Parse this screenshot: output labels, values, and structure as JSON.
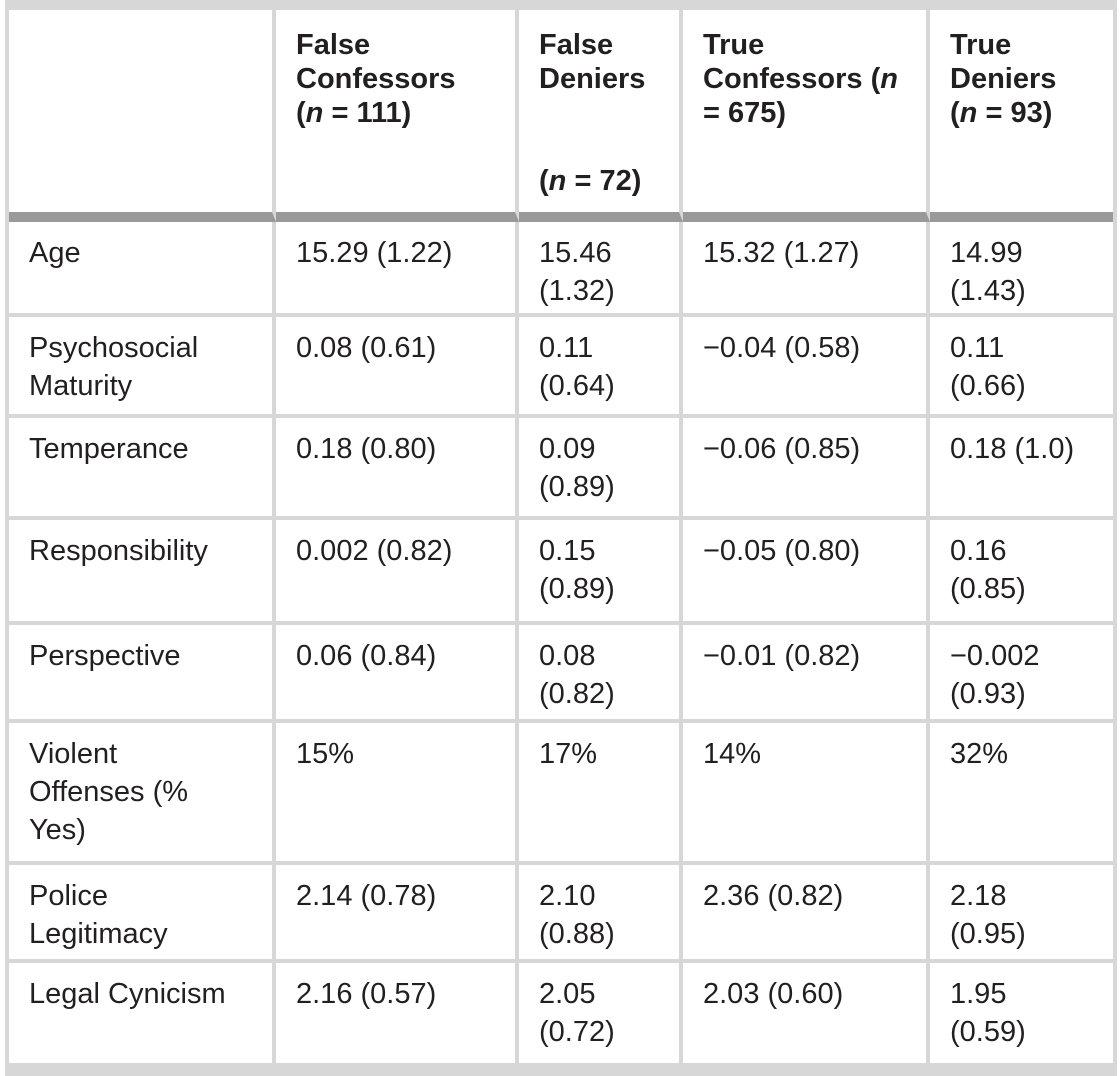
{
  "colors": {
    "text": "#231f20",
    "grid_border": "#d7d7d7",
    "header_band": "#999999",
    "cell_background": "#ffffff"
  },
  "table": {
    "description": "Descriptive statistics table: mean (SD) by confession/denial group",
    "columns": [
      {
        "key": "variable",
        "header_text": "",
        "header_lines": []
      },
      {
        "key": "false_confessors",
        "header_text": "False Confessors (n = 111)",
        "header_lines": [
          [
            {
              "t": "False"
            }
          ],
          [
            {
              "t": "Confessors"
            }
          ],
          [
            {
              "t": "("
            },
            {
              "t": "n",
              "i": true
            },
            {
              "t": " = 111)"
            }
          ]
        ]
      },
      {
        "key": "false_deniers",
        "header_text": "False Deniers (n = 72)",
        "header_lines": [
          [
            {
              "t": "False"
            }
          ],
          [
            {
              "t": "Deniers"
            }
          ],
          [],
          [],
          [
            {
              "t": "("
            },
            {
              "t": "n",
              "i": true
            },
            {
              "t": " = 72)"
            }
          ]
        ]
      },
      {
        "key": "true_confessors",
        "header_text": "True Confessors (n = 675)",
        "header_lines": [
          [
            {
              "t": "True"
            }
          ],
          [
            {
              "t": "Confessors ("
            },
            {
              "t": "n",
              "i": true
            }
          ],
          [
            {
              "t": "= 675)"
            }
          ]
        ]
      },
      {
        "key": "true_deniers",
        "header_text": "True Deniers (n = 93)",
        "header_lines": [
          [
            {
              "t": "True"
            }
          ],
          [
            {
              "t": "Deniers"
            }
          ],
          [
            {
              "t": "("
            },
            {
              "t": "n",
              "i": true
            },
            {
              "t": " = 93)"
            }
          ]
        ]
      }
    ],
    "rows": [
      {
        "label": "Age",
        "values": [
          "15.29 (1.22)",
          "15.46\n(1.32)",
          "15.32 (1.27)",
          "14.99\n(1.43)"
        ]
      },
      {
        "label": "Psychosocial\nMaturity",
        "values": [
          "0.08 (0.61)",
          "0.11\n(0.64)",
          "−0.04 (0.58)",
          "0.11\n(0.66)"
        ]
      },
      {
        "label": "Temperance",
        "values": [
          "0.18 (0.80)",
          "0.09\n(0.89)",
          "−0.06 (0.85)",
          "0.18 (1.0)"
        ]
      },
      {
        "label": "Responsibility",
        "values": [
          "0.002 (0.82)",
          "0.15\n(0.89)",
          "−0.05 (0.80)",
          "0.16\n(0.85)"
        ]
      },
      {
        "label": "Perspective",
        "values": [
          "0.06 (0.84)",
          "0.08\n(0.82)",
          "−0.01 (0.82)",
          "−0.002\n(0.93)"
        ]
      },
      {
        "label": "Violent\nOffenses (%\nYes)",
        "values": [
          "15%",
          "17%",
          "14%",
          "32%"
        ]
      },
      {
        "label": "Police\nLegitimacy",
        "values": [
          "2.14 (0.78)",
          "2.10\n(0.88)",
          "2.36 (0.82)",
          "2.18\n(0.95)"
        ]
      },
      {
        "label": "Legal Cynicism",
        "values": [
          "2.16 (0.57)",
          "2.05\n(0.72)",
          "2.03 (0.60)",
          "1.95\n(0.59)"
        ]
      }
    ]
  }
}
